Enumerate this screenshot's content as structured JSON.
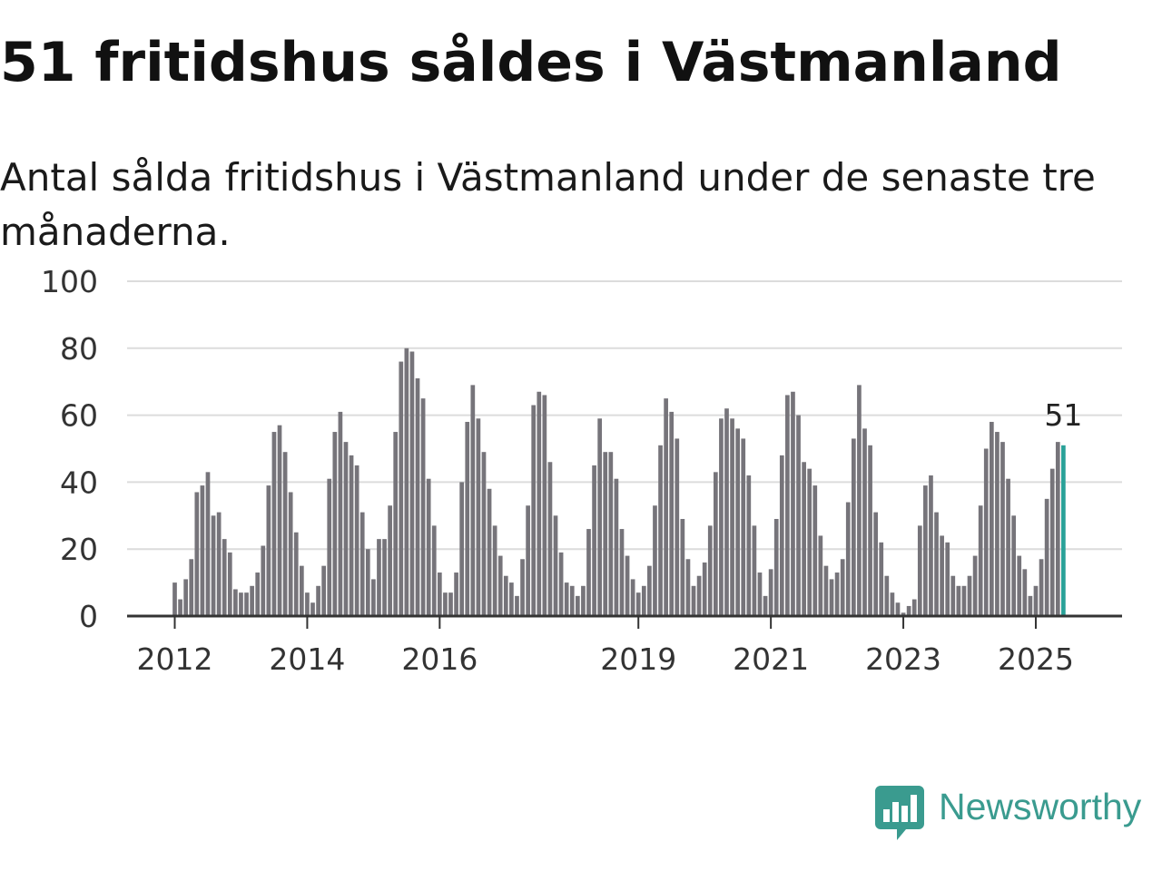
{
  "header": {
    "title": "51 fritidshus såldes i Västmanland",
    "subtitle": "Antal sålda fritidshus i Västmanland under de senaste tre månaderna."
  },
  "brand": {
    "name": "Newsworthy",
    "color": "#3a9b8f",
    "icon": "newsworthy-logo-icon"
  },
  "chart_data": {
    "type": "bar",
    "title": "51 fritidshus såldes i Västmanland",
    "subtitle": "Antal sålda fritidshus i Västmanland under de senaste tre månaderna.",
    "xlabel": "",
    "ylabel": "",
    "ylim": [
      0,
      100
    ],
    "yticks": [
      "0",
      "20",
      "40",
      "60",
      "80",
      "100"
    ],
    "xticks": [
      {
        "label": "2012",
        "index": 0
      },
      {
        "label": "2014",
        "index": 24
      },
      {
        "label": "2016",
        "index": 48
      },
      {
        "label": "2019",
        "index": 84
      },
      {
        "label": "2021",
        "index": 108
      },
      {
        "label": "2023",
        "index": 132
      },
      {
        "label": "2025",
        "index": 156
      }
    ],
    "grid": true,
    "start": "2012-01",
    "frequency": "month",
    "bar_color": "#76747a",
    "highlight_color": "#2aa198",
    "highlight_label": "51",
    "values": [
      10,
      5,
      11,
      17,
      37,
      39,
      43,
      30,
      31,
      23,
      19,
      8,
      7,
      7,
      9,
      13,
      21,
      39,
      55,
      57,
      49,
      37,
      25,
      15,
      7,
      4,
      9,
      15,
      41,
      55,
      61,
      52,
      48,
      45,
      31,
      20,
      11,
      23,
      23,
      33,
      55,
      76,
      80,
      79,
      71,
      65,
      41,
      27,
      13,
      7,
      7,
      13,
      40,
      58,
      69,
      59,
      49,
      38,
      27,
      18,
      12,
      10,
      6,
      17,
      33,
      63,
      67,
      66,
      46,
      30,
      19,
      10,
      9,
      6,
      9,
      26,
      45,
      59,
      49,
      49,
      41,
      26,
      18,
      11,
      7,
      9,
      15,
      33,
      51,
      65,
      61,
      53,
      29,
      17,
      9,
      12,
      16,
      27,
      43,
      59,
      62,
      59,
      56,
      53,
      42,
      27,
      13,
      6,
      14,
      29,
      48,
      66,
      67,
      60,
      46,
      44,
      39,
      24,
      15,
      11,
      13,
      17,
      34,
      53,
      69,
      56,
      51,
      31,
      22,
      12,
      7,
      4,
      1,
      3,
      5,
      27,
      39,
      42,
      31,
      24,
      22,
      12,
      9,
      9,
      12,
      18,
      33,
      50,
      58,
      55,
      52,
      41,
      30,
      18,
      14,
      6,
      9,
      17,
      35,
      44,
      52,
      51
    ]
  }
}
